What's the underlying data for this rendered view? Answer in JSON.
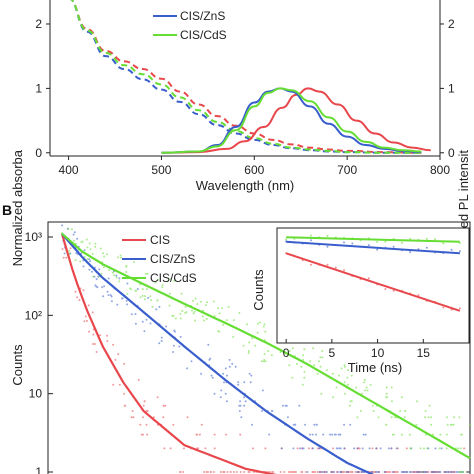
{
  "panels": {
    "a": {
      "label": ""
    },
    "b": {
      "label": "B"
    }
  },
  "colors": {
    "CIS": "#e8474c",
    "CIS/ZnS": "#3a5fcd",
    "CIS/CdS": "#66dd33"
  },
  "chart_data": [
    {
      "type": "line",
      "xlabel": "Wavelength (nm)",
      "ylabel_left": "Normalized absorba",
      "ylabel_right": "Normalized PL intensit",
      "xlim": [
        380,
        800
      ],
      "ylim": [
        -0.05,
        2.45
      ],
      "xticks": [
        400,
        500,
        600,
        700,
        800
      ],
      "yticks_left": [
        0,
        1,
        2
      ],
      "yticks_right": [
        0,
        1,
        2
      ],
      "legend": {
        "placement": "top-center",
        "entries": [
          "CIS/ZnS",
          "CIS/CdS"
        ]
      },
      "absorbance_series": [
        {
          "name": "CIS",
          "style": "dashed",
          "x": [
            400,
            420,
            440,
            460,
            480,
            500,
            520,
            540,
            560,
            580,
            600,
            620,
            640,
            660,
            680,
            700,
            740,
            780
          ],
          "y": [
            2.4,
            1.92,
            1.58,
            1.42,
            1.3,
            1.15,
            0.95,
            0.75,
            0.57,
            0.42,
            0.3,
            0.2,
            0.13,
            0.08,
            0.05,
            0.03,
            0.01,
            0.0
          ]
        },
        {
          "name": "CIS/ZnS",
          "style": "dashed",
          "x": [
            400,
            420,
            440,
            460,
            480,
            500,
            520,
            540,
            560,
            580,
            600,
            620,
            640,
            660,
            680,
            700,
            740,
            780
          ],
          "y": [
            2.4,
            1.88,
            1.5,
            1.3,
            1.14,
            0.98,
            0.79,
            0.6,
            0.43,
            0.3,
            0.2,
            0.12,
            0.07,
            0.04,
            0.02,
            0.01,
            0.0,
            0.0
          ]
        },
        {
          "name": "CIS/CdS",
          "style": "dashed",
          "x": [
            400,
            420,
            440,
            460,
            480,
            500,
            520,
            540,
            560,
            580,
            600,
            620,
            640,
            660,
            680,
            700,
            740,
            780
          ],
          "y": [
            2.4,
            1.9,
            1.55,
            1.36,
            1.22,
            1.06,
            0.86,
            0.66,
            0.48,
            0.34,
            0.23,
            0.14,
            0.08,
            0.05,
            0.03,
            0.01,
            0.0,
            0.0
          ]
        }
      ],
      "pl_series": [
        {
          "name": "CIS",
          "style": "solid",
          "x": [
            500,
            540,
            570,
            590,
            610,
            630,
            645,
            658,
            670,
            690,
            710,
            730,
            750,
            770,
            790
          ],
          "y": [
            0.0,
            0.01,
            0.06,
            0.18,
            0.4,
            0.7,
            0.9,
            1.0,
            0.95,
            0.75,
            0.5,
            0.3,
            0.16,
            0.08,
            0.04
          ]
        },
        {
          "name": "CIS/ZnS",
          "style": "solid",
          "x": [
            500,
            540,
            560,
            580,
            600,
            615,
            628,
            640,
            660,
            680,
            700,
            720,
            740,
            760,
            780
          ],
          "y": [
            0.0,
            0.02,
            0.12,
            0.4,
            0.78,
            0.95,
            1.0,
            0.95,
            0.72,
            0.45,
            0.25,
            0.12,
            0.06,
            0.03,
            0.01
          ]
        },
        {
          "name": "CIS/CdS",
          "style": "solid",
          "x": [
            500,
            540,
            560,
            580,
            600,
            615,
            628,
            640,
            660,
            680,
            700,
            720,
            740,
            760,
            780
          ],
          "y": [
            0.0,
            0.02,
            0.1,
            0.35,
            0.72,
            0.93,
            1.0,
            0.97,
            0.8,
            0.55,
            0.33,
            0.17,
            0.08,
            0.04,
            0.02
          ]
        }
      ]
    },
    {
      "type": "scatter",
      "ylabel": "Counts",
      "yscale": "log",
      "ylim": [
        1,
        1000
      ],
      "yticks": [
        1,
        10,
        100,
        1000
      ],
      "ytick_labels": [
        "1",
        "10",
        "10²",
        "10³"
      ],
      "legend": {
        "placement": "top-left",
        "entries": [
          "CIS",
          "CIS/ZnS",
          "CIS/CdS"
        ]
      },
      "series": [
        {
          "name": "CIS",
          "fit_t": [
            0,
            0.03,
            0.06,
            0.1,
            0.15,
            0.2,
            0.3,
            0.45,
            0.7,
            1.0
          ],
          "fit_counts": [
            1100,
            320,
            120,
            40,
            14,
            6,
            2.2,
            1.1,
            0.6,
            0.4
          ]
        },
        {
          "name": "CIS/ZnS",
          "fit_t": [
            0,
            0.05,
            0.1,
            0.2,
            0.3,
            0.4,
            0.5,
            0.6,
            0.7,
            0.8,
            0.9,
            1.0
          ],
          "fit_counts": [
            1100,
            550,
            300,
            110,
            40,
            15,
            6,
            2.7,
            1.3,
            0.75,
            0.5,
            0.4
          ]
        },
        {
          "name": "CIS/CdS",
          "fit_t": [
            0,
            0.05,
            0.1,
            0.2,
            0.3,
            0.4,
            0.5,
            0.6,
            0.7,
            0.8,
            0.9,
            1.0
          ],
          "fit_counts": [
            1100,
            650,
            450,
            250,
            140,
            80,
            45,
            24,
            12,
            6,
            3,
            1.5
          ]
        }
      ],
      "inset": {
        "xlabel": "Time (ns)",
        "ylabel": "Counts",
        "xlim": [
          -1,
          20
        ],
        "xticks": [
          0,
          5,
          10,
          15
        ],
        "series": [
          {
            "name": "CIS",
            "x": [
              0,
              19
            ],
            "y": [
              0.78,
              0.28
            ]
          },
          {
            "name": "CIS/ZnS",
            "x": [
              0,
              19
            ],
            "y": [
              0.88,
              0.78
            ]
          },
          {
            "name": "CIS/CdS",
            "x": [
              0,
              19
            ],
            "y": [
              0.92,
              0.88
            ]
          }
        ]
      }
    }
  ]
}
